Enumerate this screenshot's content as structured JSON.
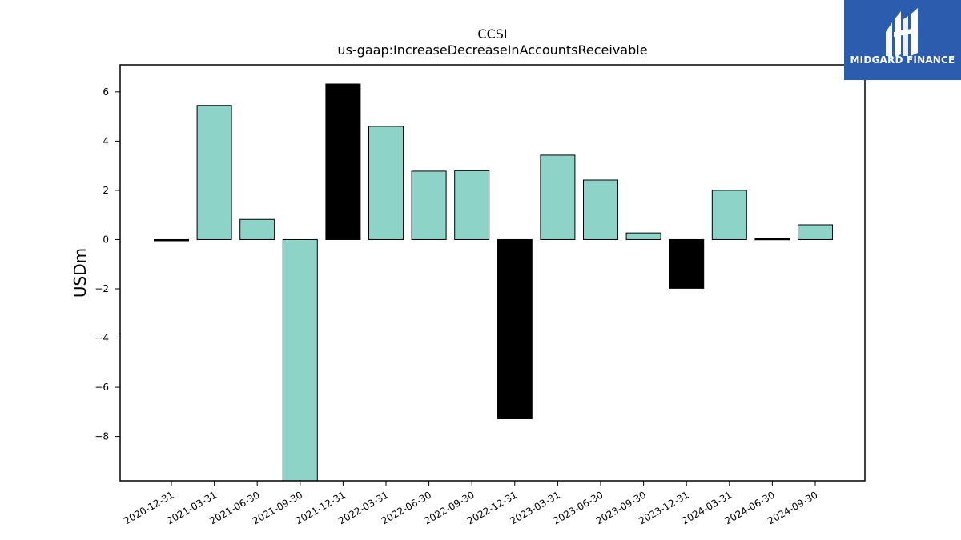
{
  "chart_data": {
    "type": "bar",
    "title": "CCSI",
    "subtitle": "us-gaap:IncreaseDecreaseInAccountsReceivable",
    "xlabel": "",
    "ylabel": "USDm",
    "ylim": [
      -9.8,
      7.1
    ],
    "yticks": [
      6,
      4,
      2,
      0,
      -2,
      -4,
      -6,
      -8
    ],
    "ytick_labels": [
      "6",
      "4",
      "2",
      "0",
      "−2",
      "−4",
      "−6",
      "−8"
    ],
    "categories": [
      "2020-12-31",
      "2021-03-31",
      "2021-06-30",
      "2021-09-30",
      "2021-12-31",
      "2022-03-31",
      "2022-06-30",
      "2022-09-30",
      "2022-12-31",
      "2023-03-31",
      "2023-06-30",
      "2023-09-30",
      "2023-12-31",
      "2024-03-31",
      "2024-06-30",
      "2024-09-30"
    ],
    "values": [
      -0.05,
      5.45,
      0.82,
      -9.8,
      6.32,
      4.6,
      2.78,
      2.8,
      -7.28,
      3.43,
      2.42,
      0.27,
      -1.98,
      2.0,
      0.04,
      0.6
    ],
    "colors": [
      "#000000",
      "#8dd3c7",
      "#8dd3c7",
      "#8dd3c7",
      "#000000",
      "#8dd3c7",
      "#8dd3c7",
      "#8dd3c7",
      "#000000",
      "#8dd3c7",
      "#8dd3c7",
      "#8dd3c7",
      "#000000",
      "#8dd3c7",
      "#000000",
      "#8dd3c7"
    ],
    "grid": false,
    "legend": "none"
  },
  "logo": {
    "text": "MIDGARD FINANCE",
    "background": "#2b5cad"
  }
}
